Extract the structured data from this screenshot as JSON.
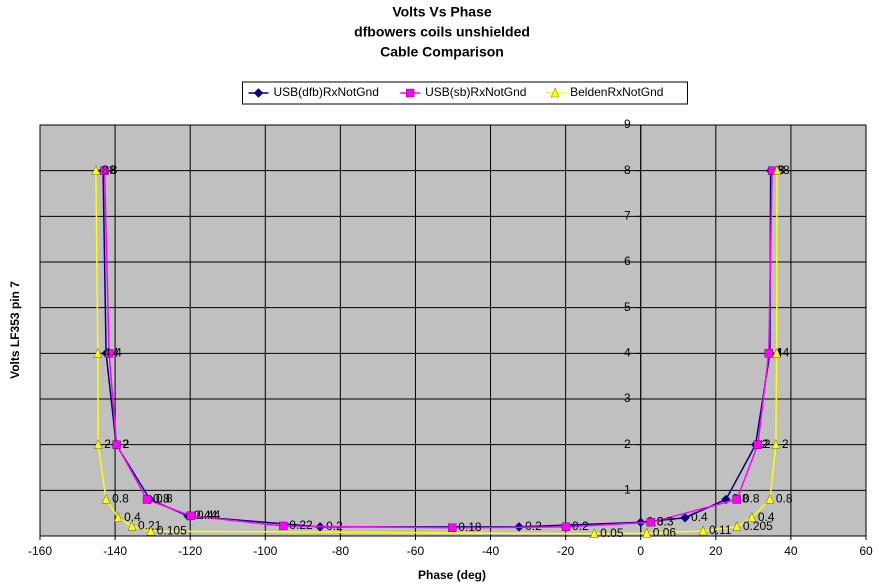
{
  "chart_data": {
    "type": "scatter",
    "title": [
      "Volts Vs Phase",
      "dfbowers coils unshielded",
      "Cable Comparison"
    ],
    "x_label": "Phase (deg)",
    "y_label": "Volts LF353 pin 7",
    "xlim": [
      -160,
      60
    ],
    "xticks": [
      -160,
      -140,
      -120,
      -100,
      -80,
      -60,
      -40,
      -20,
      0,
      20,
      40,
      60
    ],
    "ylim": [
      0,
      9
    ],
    "yticks": [
      1,
      2,
      3,
      4,
      5,
      6,
      7,
      8,
      9
    ],
    "grid": true,
    "legend": "top",
    "series": [
      {
        "name": "USB(dfb)RxNotGnd",
        "color": "#000080",
        "marker": "diamond",
        "x": [
          -143.2,
          -142.4,
          -139.7,
          -130.7,
          -120.6,
          -85.4,
          -32.4,
          0,
          11.8,
          22.7,
          30.6,
          34.4,
          34.6
        ],
        "values": [
          8,
          4,
          2,
          0.8,
          0.44,
          0.2,
          0.2,
          0.3,
          0.4,
          0.8,
          2,
          4,
          8
        ]
      },
      {
        "name": "USB(sb)RxNotGnd",
        "color": "#ff00ff",
        "marker": "square",
        "x": [
          -142.8,
          -141.6,
          -139.6,
          -131.5,
          -119.8,
          -95.2,
          -50.2,
          -19.9,
          2.7,
          25.6,
          31.2,
          34.1,
          35
        ],
        "values": [
          8,
          4,
          2,
          0.8,
          0.44,
          0.22,
          0.18,
          0.2,
          0.3,
          0.8,
          2,
          4,
          8
        ]
      },
      {
        "name": "BeldenRxNotGnd",
        "color": "#ffff00",
        "marker": "triangle",
        "x": [
          -145.1,
          -144.6,
          -144.5,
          -142.4,
          -139.2,
          -135.5,
          -130.5,
          -12.4,
          1.6,
          16.6,
          25.6,
          29.6,
          34.4,
          36,
          36.2,
          36.3
        ],
        "values": [
          8,
          4,
          2,
          0.8,
          0.4,
          0.21,
          0.105,
          0.05,
          0.06,
          0.11,
          0.205,
          0.4,
          0.8,
          2,
          4,
          8
        ]
      }
    ]
  }
}
